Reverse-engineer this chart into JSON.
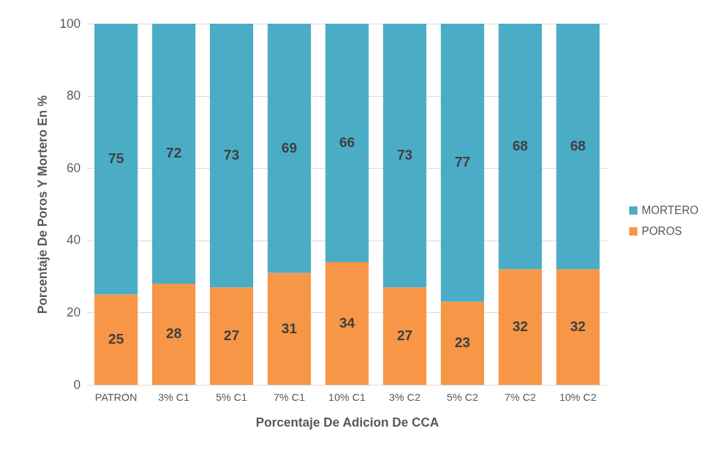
{
  "chart_data": {
    "type": "bar",
    "xlabel": "Porcentaje De Adicion De CCA",
    "ylabel": "Porcentaje De Poros Y  Mortero En %",
    "categories": [
      "PATRON",
      "3% C1",
      "5% C1",
      "7% C1",
      "10% C1",
      "3% C2",
      "5% C2",
      "7% C2",
      "10% C2"
    ],
    "series": [
      {
        "name": "POROS",
        "color": "#f79646",
        "values": [
          25,
          28,
          27,
          31,
          34,
          27,
          23,
          32,
          32
        ]
      },
      {
        "name": "MORTERO",
        "color": "#4bacc6",
        "values": [
          75,
          72,
          73,
          69,
          66,
          73,
          77,
          68,
          68
        ]
      }
    ],
    "stacked": true,
    "ylim": [
      0,
      100
    ],
    "yticks": [
      0,
      20,
      40,
      60,
      80,
      100
    ],
    "grid": "y",
    "legend": "right",
    "data_labels": true
  }
}
